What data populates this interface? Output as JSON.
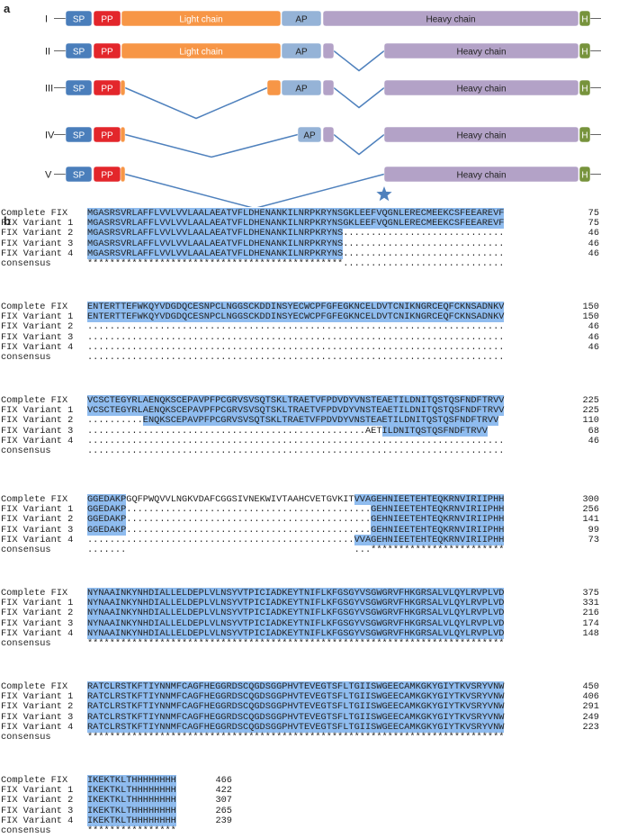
{
  "panel_a": {
    "letter": "a",
    "rows": [
      {
        "roman": "I",
        "segments": [
          {
            "label": "SP",
            "kind": "SP"
          },
          {
            "label": "PP",
            "kind": "PP"
          },
          {
            "label": "Light chain",
            "kind": "LC"
          },
          {
            "label": "AP",
            "kind": "AP"
          },
          {
            "label": "Heavy chain",
            "kind": "HC"
          },
          {
            "label": "H",
            "kind": "H"
          }
        ]
      },
      {
        "roman": "II",
        "segments": [
          {
            "label": "SP",
            "kind": "SP"
          },
          {
            "label": "PP",
            "kind": "PP"
          },
          {
            "label": "Light chain",
            "kind": "LC"
          },
          {
            "label": "AP",
            "kind": "AP"
          },
          {
            "label": "",
            "kind": "HCsmall"
          },
          {
            "label": "Heavy chain",
            "kind": "HC"
          },
          {
            "label": "H",
            "kind": "H"
          }
        ]
      },
      {
        "roman": "III",
        "segments": [
          {
            "label": "SP",
            "kind": "SP"
          },
          {
            "label": "PP",
            "kind": "PP"
          },
          {
            "label": "",
            "kind": "LCsmall"
          },
          {
            "label": "",
            "kind": "LCsmall"
          },
          {
            "label": "AP",
            "kind": "AP"
          },
          {
            "label": "",
            "kind": "HCsmall"
          },
          {
            "label": "Heavy chain",
            "kind": "HC"
          },
          {
            "label": "H",
            "kind": "H"
          }
        ]
      },
      {
        "roman": "IV",
        "segments": [
          {
            "label": "SP",
            "kind": "SP"
          },
          {
            "label": "PP",
            "kind": "PP"
          },
          {
            "label": "",
            "kind": "LCsmall"
          },
          {
            "label": "AP",
            "kind": "AP"
          },
          {
            "label": "",
            "kind": "HCsmall"
          },
          {
            "label": "Heavy chain",
            "kind": "HC"
          },
          {
            "label": "H",
            "kind": "H"
          }
        ]
      },
      {
        "roman": "V",
        "segments": [
          {
            "label": "SP",
            "kind": "SP"
          },
          {
            "label": "PP",
            "kind": "PP"
          },
          {
            "label": "",
            "kind": "LCsmall"
          },
          {
            "label": "Heavy chain",
            "kind": "HC"
          },
          {
            "label": "H",
            "kind": "H"
          }
        ]
      }
    ],
    "colors": {
      "SP": "#4a7ebb",
      "PP": "#e3262b",
      "LC": "#f79646",
      "AP": "#95b3d7",
      "HC": "#b3a2c7",
      "H": "#77933c",
      "line": "#4f81bd",
      "star": "#4f81bd"
    },
    "star_icon": "star-icon"
  },
  "panel_b": {
    "letter": "b",
    "names": [
      "Complete FIX",
      "FIX Variant 1",
      "FIX Variant 2",
      "FIX Variant 3",
      "FIX Variant 4",
      "consensus"
    ],
    "blocks": [
      {
        "rows": [
          {
            "text": "MGASRSVRLAFFLVVLVVLAALAEATVFLDHENANKILNRPKRYNSGKLEEFVQGNLERECMEEKCSFEEAREVF",
            "hl": [
              [
                0,
                75
              ]
            ],
            "num": "75"
          },
          {
            "text": "MGASRSVRLAFFLVVLVVLAALAEATVFLDHENANKILNRPKRYNSGKLEEFVQGNLERECMEEKCSFEEAREVF",
            "hl": [
              [
                0,
                75
              ]
            ],
            "num": "75"
          },
          {
            "text": "MGASRSVRLAFFLVVLVVLAALAEATVFLDHENANKILNRPKRYNS.............................",
            "hl": [
              [
                0,
                46
              ]
            ],
            "num": "46"
          },
          {
            "text": "MGASRSVRLAFFLVVLVVLAALAEATVFLDHENANKILNRPKRYNS.............................",
            "hl": [
              [
                0,
                46
              ]
            ],
            "num": "46"
          },
          {
            "text": "MGASRSVRLAFFLVVLVVLAALAEATVFLDHENANKILNRPKRYNS.............................",
            "hl": [
              [
                0,
                46
              ]
            ],
            "num": "46"
          },
          {
            "text": "**********************************************.............................",
            "hl": [],
            "num": ""
          }
        ]
      },
      {
        "rows": [
          {
            "text": "ENTERTTEFWKQYVDGDQCESNPCLNGGSCKDDINSYECWCPFGFEGKNCELDVTCNIKNGRCEQFCKNSADNKV",
            "hl": [
              [
                0,
                75
              ]
            ],
            "num": "150"
          },
          {
            "text": "ENTERTTEFWKQYVDGDQCESNPCLNGGSCKDDINSYECWCPFGFEGKNCELDVTCNIKNGRCEQFCKNSADNKV",
            "hl": [
              [
                0,
                75
              ]
            ],
            "num": "150"
          },
          {
            "text": "...........................................................................",
            "hl": [],
            "num": "46"
          },
          {
            "text": "...........................................................................",
            "hl": [],
            "num": "46"
          },
          {
            "text": "...........................................................................",
            "hl": [],
            "num": "46"
          },
          {
            "text": "...........................................................................",
            "hl": [],
            "num": ""
          }
        ]
      },
      {
        "rows": [
          {
            "text": "VCSCTEGYRLAENQKSCEPAVPFPCGRVSVSQTSKLTRAETVFPDVDYVNSTEAETILDNITQSTQSFNDFTRVV",
            "hl": [
              [
                0,
                75
              ]
            ],
            "num": "225"
          },
          {
            "text": "VCSCTEGYRLAENQKSCEPAVPFPCGRVSVSQTSKLTRAETVFPDVDYVNSTEAETILDNITQSTQSFNDFTRVV",
            "hl": [
              [
                0,
                75
              ]
            ],
            "num": "225"
          },
          {
            "text": "..........ENQKSCEPAVPFPCGRVSVSQTSKLTRAETVFPDVDYVNSTEAETILDNITQSTQSFNDFTRVV",
            "hl": [
              [
                10,
                75
              ]
            ],
            "num": "110"
          },
          {
            "text": "..................................................AETILDNITQSTQSFNDFTRVV",
            "hl": [
              [
                53,
                75
              ]
            ],
            "num": "68"
          },
          {
            "text": "...........................................................................",
            "hl": [],
            "num": "46"
          },
          {
            "text": "...........................................................................",
            "hl": [],
            "num": ""
          }
        ]
      },
      {
        "rows": [
          {
            "text": "GGEDAKPGQFPWQVVLNGKVDAFCGGSIVNEKWIVTAAHCVETGVKITVVAGEHNIEETEHTEQKRNVIRIIPHH",
            "hl": [
              [
                0,
                7
              ],
              [
                48,
                75
              ]
            ],
            "num": "300"
          },
          {
            "text": "GGEDAKP............................................GEHNIEETEHTEQKRNVIRIIPHH",
            "hl": [
              [
                0,
                7
              ],
              [
                51,
                75
              ]
            ],
            "num": "256"
          },
          {
            "text": "GGEDAKP............................................GEHNIEETEHTEQKRNVIRIIPHH",
            "hl": [
              [
                0,
                7
              ],
              [
                51,
                75
              ]
            ],
            "num": "141"
          },
          {
            "text": "GGEDAKP............................................GEHNIEETEHTEQKRNVIRIIPHH",
            "hl": [
              [
                0,
                7
              ],
              [
                51,
                75
              ]
            ],
            "num": "99"
          },
          {
            "text": "................................................VVAGEHNIEETEHTEQKRNVIRIIPHH",
            "hl": [
              [
                48,
                75
              ]
            ],
            "num": "73"
          },
          {
            "text": ".......                                         ...************************",
            "hl": [],
            "num": ""
          }
        ]
      },
      {
        "rows": [
          {
            "text": "NYNAAINKYNHDIALLELDEPLVLNSYVTPICIADKEYTNIFLKFGSGYVSGWGRVFHKGRSALVLQYLRVPLVD",
            "hl": [
              [
                0,
                75
              ]
            ],
            "num": "375"
          },
          {
            "text": "NYNAAINKYNHDIALLELDEPLVLNSYVTPICIADKEYTNIFLKFGSGYVSGWGRVFHKGRSALVLQYLRVPLVD",
            "hl": [
              [
                0,
                75
              ]
            ],
            "num": "331"
          },
          {
            "text": "NYNAAINKYNHDIALLELDEPLVLNSYVTPICIADKEYTNIFLKFGSGYVSGWGRVFHKGRSALVLQYLRVPLVD",
            "hl": [
              [
                0,
                75
              ]
            ],
            "num": "216"
          },
          {
            "text": "NYNAAINKYNHDIALLELDEPLVLNSYVTPICIADKEYTNIFLKFGSGYVSGWGRVFHKGRSALVLQYLRVPLVD",
            "hl": [
              [
                0,
                75
              ]
            ],
            "num": "174"
          },
          {
            "text": "NYNAAINKYNHDIALLELDEPLVLNSYVTPICIADKEYTNIFLKFGSGYVSGWGRVFHKGRSALVLQYLRVPLVD",
            "hl": [
              [
                0,
                75
              ]
            ],
            "num": "148"
          },
          {
            "text": "***************************************************************************",
            "hl": [],
            "num": ""
          }
        ]
      },
      {
        "rows": [
          {
            "text": "RATCLRSTKFTIYNNMFCAGFHEGGRDSCQGDSGGPHVTEVEGTSFLTGIISWGEECAMKGKYGIYTKVSRYVNW",
            "hl": [
              [
                0,
                75
              ]
            ],
            "num": "450"
          },
          {
            "text": "RATCLRSTKFTIYNNMFCAGFHEGGRDSCQGDSGGPHVTEVEGTSFLTGIISWGEECAMKGKYGIYTKVSRYVNW",
            "hl": [
              [
                0,
                75
              ]
            ],
            "num": "406"
          },
          {
            "text": "RATCLRSTKFTIYNNMFCAGFHEGGRDSCQGDSGGPHVTEVEGTSFLTGIISWGEECAMKGKYGIYTKVSRYVNW",
            "hl": [
              [
                0,
                75
              ]
            ],
            "num": "291"
          },
          {
            "text": "RATCLRSTKFTIYNNMFCAGFHEGGRDSCQGDSGGPHVTEVEGTSFLTGIISWGEECAMKGKYGIYTKVSRYVNW",
            "hl": [
              [
                0,
                75
              ]
            ],
            "num": "249"
          },
          {
            "text": "RATCLRSTKFTIYNNMFCAGFHEGGRDSCQGDSGGPHVTEVEGTSFLTGIISWGEECAMKGKYGIYTKVSRYVNW",
            "hl": [
              [
                0,
                75
              ]
            ],
            "num": "223"
          },
          {
            "text": "***************************************************************************",
            "hl": [],
            "num": ""
          }
        ]
      },
      {
        "rows": [
          {
            "text": "IKEKTKLTHHHHHHHH",
            "hl": [
              [
                0,
                16
              ]
            ],
            "num": "466"
          },
          {
            "text": "IKEKTKLTHHHHHHHH",
            "hl": [
              [
                0,
                16
              ]
            ],
            "num": "422"
          },
          {
            "text": "IKEKTKLTHHHHHHHH",
            "hl": [
              [
                0,
                16
              ]
            ],
            "num": "307"
          },
          {
            "text": "IKEKTKLTHHHHHHHH",
            "hl": [
              [
                0,
                16
              ]
            ],
            "num": "265"
          },
          {
            "text": "IKEKTKLTHHHHHHHH",
            "hl": [
              [
                0,
                16
              ]
            ],
            "num": "239"
          },
          {
            "text": "****************",
            "hl": [],
            "num": ""
          }
        ]
      }
    ]
  }
}
